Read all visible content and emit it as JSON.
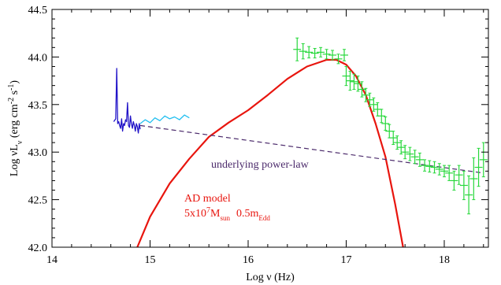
{
  "chart_data": {
    "type": "line",
    "xlabel": "Log ν (Hz)",
    "ylabel": "Log νL_ν (erg cm^-2 s^-1)",
    "xlim": [
      14,
      18.45
    ],
    "ylim": [
      42,
      44.5
    ],
    "x_ticks": [
      "14",
      "15",
      "16",
      "17",
      "18"
    ],
    "y_ticks": [
      "42.0",
      "42.5",
      "43.0",
      "43.5",
      "44.0",
      "44.5"
    ],
    "grid": false,
    "annotations": {
      "powerlaw_label": "underlying power-law",
      "ad_model": "AD model",
      "ad_params": {
        "mass_coeff": "5x10",
        "mass_exp": "7",
        "mass_base": "M",
        "mass_sub": "sun",
        "accretion": "0.5m",
        "accretion_sub": "Edd"
      }
    },
    "series": [
      {
        "color": "#e8150e",
        "style": "solid",
        "x": [
          14.87,
          15.0,
          15.2,
          15.4,
          15.6,
          15.8,
          16.0,
          16.2,
          16.4,
          16.6,
          16.8,
          16.9,
          17.0,
          17.1,
          17.2,
          17.3,
          17.4,
          17.5,
          17.58
        ],
        "y": [
          42.0,
          42.32,
          42.67,
          42.93,
          43.16,
          43.31,
          43.44,
          43.6,
          43.77,
          43.9,
          43.97,
          43.97,
          43.92,
          43.8,
          43.6,
          43.3,
          42.95,
          42.45,
          42.0
        ]
      },
      {
        "color": "#4b2a6b",
        "style": "dashed",
        "x": [
          14.9,
          18.4
        ],
        "y": [
          43.28,
          42.78
        ]
      },
      {
        "color": "#2214c8",
        "style": "solid",
        "x": [
          14.63,
          14.65,
          14.66,
          14.67,
          14.68,
          14.69,
          14.7,
          14.71,
          14.72,
          14.73,
          14.74,
          14.75,
          14.76,
          14.77,
          14.78,
          14.79,
          14.8,
          14.81,
          14.82,
          14.83,
          14.84,
          14.85,
          14.86,
          14.87,
          14.88,
          14.89,
          14.9
        ],
        "y": [
          43.32,
          43.35,
          43.88,
          43.3,
          43.32,
          43.28,
          43.25,
          43.35,
          43.22,
          43.3,
          43.28,
          43.34,
          43.32,
          43.52,
          43.28,
          43.26,
          43.38,
          43.3,
          43.25,
          43.32,
          43.28,
          43.22,
          43.3,
          43.27,
          43.2,
          43.3,
          43.24
        ]
      },
      {
        "color": "#22bff0",
        "style": "solid",
        "x": [
          14.9,
          14.95,
          15.0,
          15.05,
          15.1,
          15.15,
          15.2,
          15.25,
          15.3,
          15.35,
          15.4
        ],
        "y": [
          43.3,
          43.34,
          43.31,
          43.36,
          43.33,
          43.38,
          43.35,
          43.37,
          43.34,
          43.39,
          43.36
        ]
      },
      {
        "color": "#28d83c",
        "style": "errorbars",
        "x": [
          16.5,
          16.56,
          16.62,
          16.68,
          16.74,
          16.8,
          16.86,
          16.92,
          16.98,
          17.0,
          17.04,
          17.08,
          17.12,
          17.16,
          17.2,
          17.24,
          17.28,
          17.32,
          17.36,
          17.4,
          17.44,
          17.48,
          17.52,
          17.56,
          17.6,
          17.65,
          17.7,
          17.75,
          17.8,
          17.85,
          17.9,
          17.95,
          18.0,
          18.05,
          18.1,
          18.15,
          18.2,
          18.25,
          18.3,
          18.35,
          18.4
        ],
        "y": [
          44.08,
          44.06,
          44.05,
          44.04,
          44.05,
          44.03,
          44.02,
          43.98,
          44.02,
          43.8,
          43.75,
          43.74,
          43.72,
          43.66,
          43.6,
          43.55,
          43.5,
          43.45,
          43.38,
          43.3,
          43.22,
          43.15,
          43.1,
          43.05,
          43.0,
          42.98,
          42.95,
          42.92,
          42.86,
          42.85,
          42.84,
          42.82,
          42.8,
          42.78,
          42.7,
          42.76,
          42.65,
          42.55,
          42.72,
          42.84,
          42.92
        ],
        "err": [
          0.12,
          0.08,
          0.06,
          0.05,
          0.05,
          0.05,
          0.05,
          0.05,
          0.06,
          0.1,
          0.1,
          0.08,
          0.08,
          0.08,
          0.07,
          0.07,
          0.07,
          0.07,
          0.07,
          0.07,
          0.07,
          0.07,
          0.07,
          0.07,
          0.07,
          0.07,
          0.07,
          0.07,
          0.06,
          0.06,
          0.06,
          0.06,
          0.06,
          0.08,
          0.1,
          0.1,
          0.15,
          0.2,
          0.22,
          0.2,
          0.18
        ]
      }
    ]
  }
}
